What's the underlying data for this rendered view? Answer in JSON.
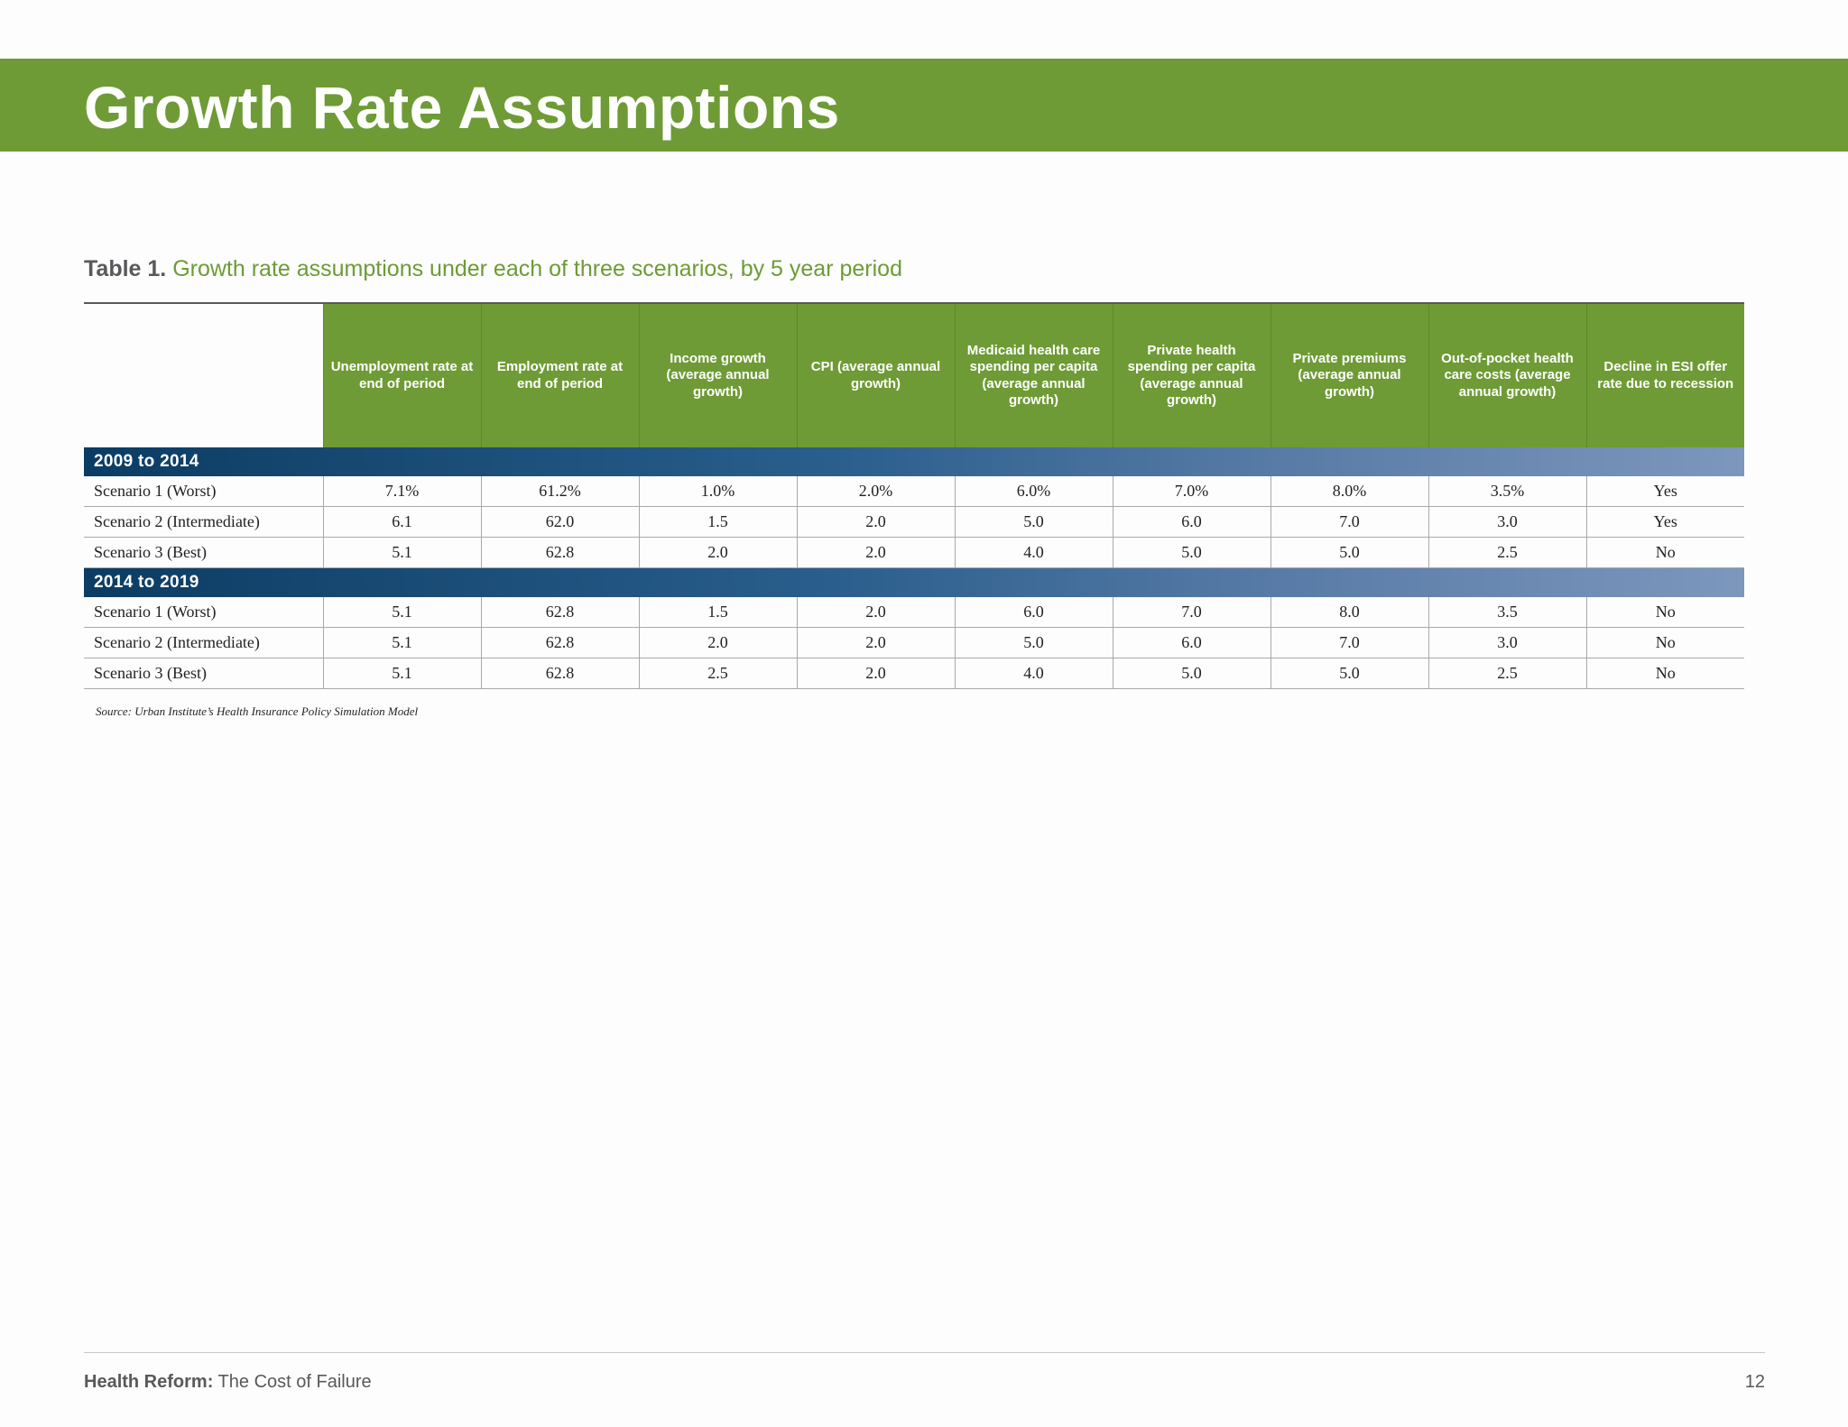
{
  "header": {
    "title": "Growth Rate Assumptions",
    "band_color": "#6e9b35"
  },
  "table": {
    "caption_label": "Table 1.",
    "caption_text": "Growth rate assumptions under each of three scenarios, by 5 year period",
    "columns": [
      "Unemployment rate at end of period",
      "Employment rate at end of period",
      "Income growth (average annual growth)",
      "CPI (average annual growth)",
      "Medicaid health care spending per capita (average annual growth)",
      "Private health spending per capita (average annual growth)",
      "Private premiums (average annual growth)",
      "Out-of-pocket health care costs (average annual growth)",
      "Decline in ESI offer rate due to recession"
    ],
    "periods": [
      {
        "label": "2009 to 2014",
        "rows": [
          {
            "label": "Scenario 1 (Worst)",
            "values": [
              "7.1%",
              "61.2%",
              "1.0%",
              "2.0%",
              "6.0%",
              "7.0%",
              "8.0%",
              "3.5%",
              "Yes"
            ]
          },
          {
            "label": "Scenario 2 (Intermediate)",
            "values": [
              "6.1",
              "62.0",
              "1.5",
              "2.0",
              "5.0",
              "6.0",
              "7.0",
              "3.0",
              "Yes"
            ]
          },
          {
            "label": "Scenario 3 (Best)",
            "values": [
              "5.1",
              "62.8",
              "2.0",
              "2.0",
              "4.0",
              "5.0",
              "5.0",
              "2.5",
              "No"
            ]
          }
        ]
      },
      {
        "label": "2014 to 2019",
        "rows": [
          {
            "label": "Scenario 1 (Worst)",
            "values": [
              "5.1",
              "62.8",
              "1.5",
              "2.0",
              "6.0",
              "7.0",
              "8.0",
              "3.5",
              "No"
            ]
          },
          {
            "label": "Scenario 2 (Intermediate)",
            "values": [
              "5.1",
              "62.8",
              "2.0",
              "2.0",
              "5.0",
              "6.0",
              "7.0",
              "3.0",
              "No"
            ]
          },
          {
            "label": "Scenario 3 (Best)",
            "values": [
              "5.1",
              "62.8",
              "2.5",
              "2.0",
              "4.0",
              "5.0",
              "5.0",
              "2.5",
              "No"
            ]
          }
        ]
      }
    ],
    "source": "Source: Urban Institute’s Health Insurance Policy Simulation Model"
  },
  "footer": {
    "title_bold": "Health Reform:",
    "title_rest": " The Cost of Failure",
    "page_number": "12"
  }
}
